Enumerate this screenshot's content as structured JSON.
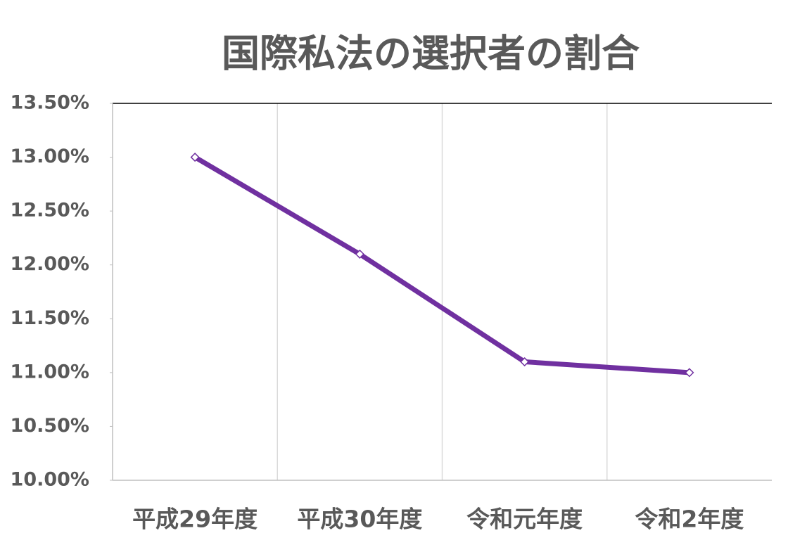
{
  "chart_data": {
    "type": "line",
    "title": "国際私法の選択者の割合",
    "categories": [
      "平成29年度",
      "平成30年度",
      "令和元年度",
      "令和2年度"
    ],
    "series": [
      {
        "name": "国際私法",
        "color": "#7030a0",
        "values": [
          13.0,
          12.1,
          11.1,
          11.0
        ]
      }
    ],
    "ylim": [
      10.0,
      13.5
    ],
    "yticks": [
      {
        "value": 10.0,
        "label": "10.00%"
      },
      {
        "value": 10.5,
        "label": "10.50%"
      },
      {
        "value": 11.0,
        "label": "11.00%"
      },
      {
        "value": 11.5,
        "label": "11.50%"
      },
      {
        "value": 12.0,
        "label": "12.00%"
      },
      {
        "value": 12.5,
        "label": "12.50%"
      },
      {
        "value": 13.0,
        "label": "13.00%"
      },
      {
        "value": 13.5,
        "label": "13.50%"
      }
    ],
    "grid": true
  }
}
